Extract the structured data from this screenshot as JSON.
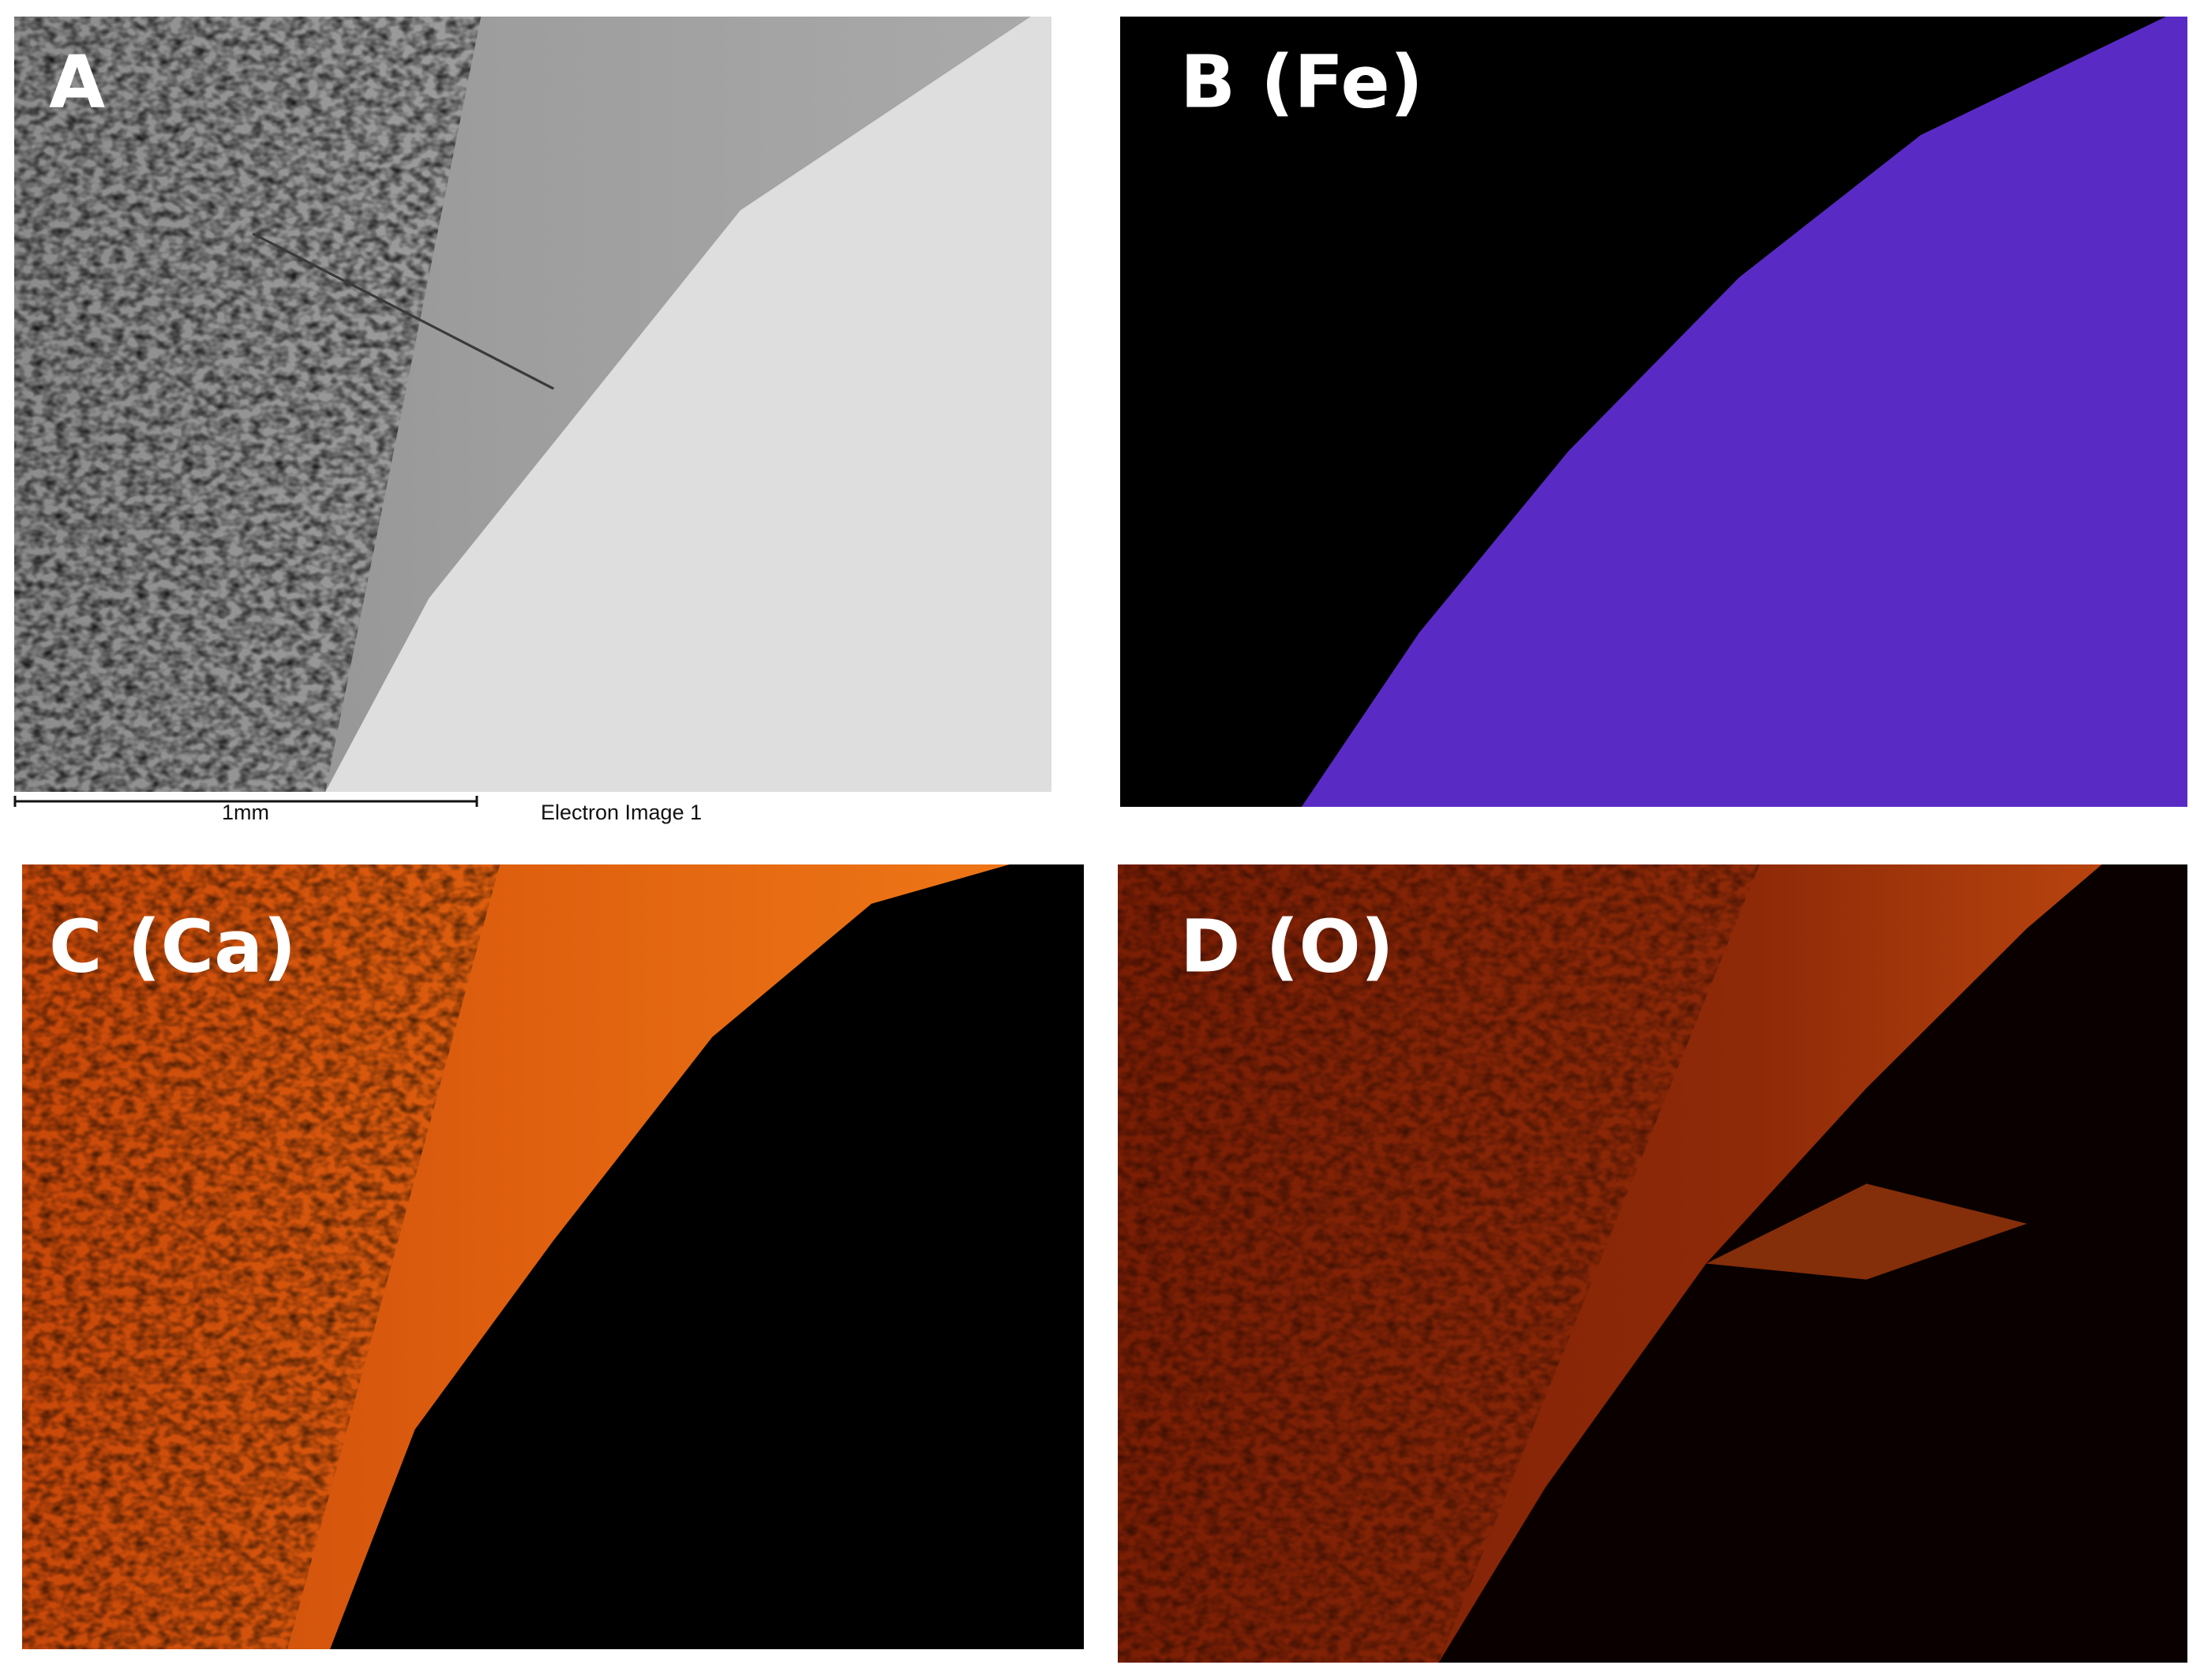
{
  "panels": [
    {
      "label": "A"
    },
    {
      "label": "B (Fe)"
    },
    {
      "label": "C (Ca)"
    },
    {
      "label": "D (O)"
    }
  ],
  "scale_bar": {
    "label": "1mm",
    "caption": "Electron Image 1"
  }
}
